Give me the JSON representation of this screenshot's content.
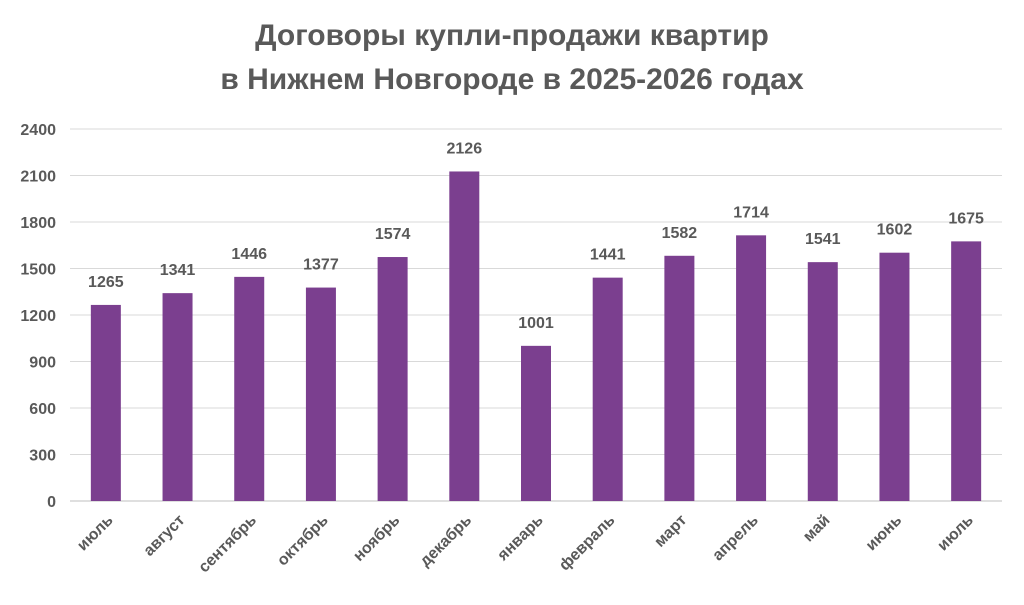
{
  "chart_data": {
    "type": "bar",
    "title_lines": [
      "Договоры купли-продажи квартир",
      "в Нижнем Новгороде в 2025-2026 годах"
    ],
    "xlabel": "",
    "ylabel": "",
    "categories": [
      "июль",
      "август",
      "сентябрь",
      "октябрь",
      "ноябрь",
      "декабрь",
      "январь",
      "февраль",
      "март",
      "апрель",
      "май",
      "июнь",
      "июль"
    ],
    "series": [
      {
        "values": [
          1265,
          1341,
          1446,
          1377,
          1574,
          2126,
          1001,
          1441,
          1582,
          1714,
          1541,
          1602,
          1675
        ],
        "color": "#7b3f8f"
      }
    ],
    "ylim": [
      0,
      2400
    ],
    "yticks": [
      0,
      300,
      600,
      900,
      1200,
      1500,
      1800,
      2100,
      2400
    ],
    "grid": true,
    "legend": "none",
    "data_labels": true
  }
}
